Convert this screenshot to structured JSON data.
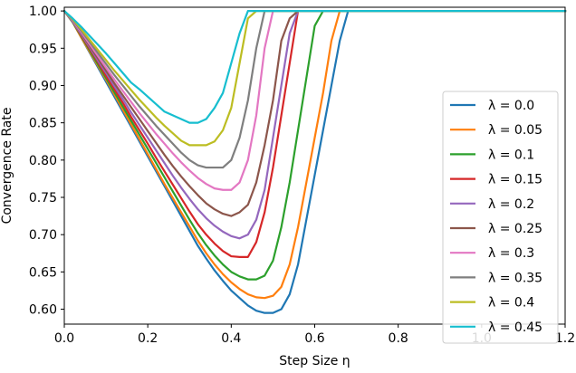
{
  "chart_data": {
    "type": "line",
    "xlabel": "Step Size η",
    "ylabel": "Convergence Rate",
    "xlim": [
      0.0,
      1.2
    ],
    "ylim": [
      0.58,
      1.005
    ],
    "xticks": [
      "0.0",
      "0.2",
      "0.4",
      "0.6",
      "0.8",
      "1.0",
      "1.2"
    ],
    "yticks": [
      "0.60",
      "0.65",
      "0.70",
      "0.75",
      "0.80",
      "0.85",
      "0.90",
      "0.95",
      "1.00"
    ],
    "grid": false,
    "legend_position": "center-right",
    "series": [
      {
        "name": "λ = 0.0",
        "color": "#1f77b4",
        "x": [
          0.0,
          0.02,
          0.04,
          0.06,
          0.08,
          0.1,
          0.12,
          0.14,
          0.16,
          0.18,
          0.2,
          0.22,
          0.24,
          0.26,
          0.28,
          0.3,
          0.32,
          0.34,
          0.36,
          0.38,
          0.4,
          0.42,
          0.44,
          0.46,
          0.48,
          0.5,
          0.52,
          0.54,
          0.56,
          0.58,
          0.6,
          0.62,
          0.64,
          0.66,
          0.68,
          1.2
        ],
        "y": [
          1.0,
          0.985,
          0.965,
          0.945,
          0.925,
          0.905,
          0.885,
          0.865,
          0.845,
          0.825,
          0.805,
          0.785,
          0.765,
          0.745,
          0.725,
          0.705,
          0.685,
          0.668,
          0.652,
          0.638,
          0.625,
          0.615,
          0.605,
          0.598,
          0.595,
          0.595,
          0.6,
          0.62,
          0.66,
          0.72,
          0.78,
          0.84,
          0.9,
          0.96,
          1.0,
          1.0
        ]
      },
      {
        "name": "λ = 0.05",
        "color": "#ff7f0e",
        "x": [
          0.0,
          0.02,
          0.04,
          0.06,
          0.08,
          0.1,
          0.12,
          0.14,
          0.16,
          0.18,
          0.2,
          0.22,
          0.24,
          0.26,
          0.28,
          0.3,
          0.32,
          0.34,
          0.36,
          0.38,
          0.4,
          0.42,
          0.44,
          0.46,
          0.48,
          0.5,
          0.52,
          0.54,
          0.56,
          0.58,
          0.6,
          0.62,
          0.64,
          0.66,
          1.2
        ],
        "y": [
          1.0,
          0.985,
          0.965,
          0.946,
          0.927,
          0.908,
          0.888,
          0.868,
          0.848,
          0.828,
          0.808,
          0.788,
          0.768,
          0.749,
          0.73,
          0.711,
          0.692,
          0.675,
          0.66,
          0.647,
          0.636,
          0.627,
          0.62,
          0.616,
          0.615,
          0.618,
          0.63,
          0.66,
          0.71,
          0.77,
          0.83,
          0.89,
          0.96,
          1.0,
          1.0
        ]
      },
      {
        "name": "λ = 0.1",
        "color": "#2ca02c",
        "x": [
          0.0,
          0.02,
          0.04,
          0.06,
          0.08,
          0.1,
          0.12,
          0.14,
          0.16,
          0.18,
          0.2,
          0.22,
          0.24,
          0.26,
          0.28,
          0.3,
          0.32,
          0.34,
          0.36,
          0.38,
          0.4,
          0.42,
          0.44,
          0.46,
          0.48,
          0.5,
          0.52,
          0.54,
          0.56,
          0.58,
          0.6,
          0.62,
          1.2
        ],
        "y": [
          1.0,
          0.985,
          0.967,
          0.948,
          0.929,
          0.91,
          0.891,
          0.872,
          0.853,
          0.834,
          0.815,
          0.796,
          0.777,
          0.758,
          0.739,
          0.72,
          0.702,
          0.686,
          0.672,
          0.66,
          0.65,
          0.644,
          0.64,
          0.64,
          0.645,
          0.665,
          0.71,
          0.77,
          0.84,
          0.91,
          0.98,
          1.0,
          1.0
        ]
      },
      {
        "name": "λ = 0.15",
        "color": "#d62728",
        "x": [
          0.0,
          0.02,
          0.04,
          0.06,
          0.08,
          0.1,
          0.12,
          0.14,
          0.16,
          0.18,
          0.2,
          0.22,
          0.24,
          0.26,
          0.28,
          0.3,
          0.32,
          0.34,
          0.36,
          0.38,
          0.4,
          0.42,
          0.44,
          0.46,
          0.48,
          0.5,
          0.52,
          0.54,
          0.56,
          0.58,
          0.6,
          1.2
        ],
        "y": [
          1.0,
          0.986,
          0.968,
          0.95,
          0.932,
          0.913,
          0.895,
          0.877,
          0.858,
          0.84,
          0.822,
          0.803,
          0.785,
          0.767,
          0.749,
          0.731,
          0.714,
          0.7,
          0.688,
          0.678,
          0.671,
          0.67,
          0.67,
          0.69,
          0.73,
          0.79,
          0.86,
          0.93,
          1.0,
          1.0,
          1.0,
          1.0
        ]
      },
      {
        "name": "λ = 0.2",
        "color": "#9467bd",
        "x": [
          0.0,
          0.02,
          0.04,
          0.06,
          0.08,
          0.1,
          0.12,
          0.14,
          0.16,
          0.18,
          0.2,
          0.22,
          0.24,
          0.26,
          0.28,
          0.3,
          0.32,
          0.34,
          0.36,
          0.38,
          0.4,
          0.42,
          0.44,
          0.46,
          0.48,
          0.5,
          0.52,
          0.54,
          0.56,
          1.2
        ],
        "y": [
          1.0,
          0.986,
          0.969,
          0.952,
          0.934,
          0.917,
          0.899,
          0.882,
          0.864,
          0.847,
          0.83,
          0.813,
          0.796,
          0.779,
          0.763,
          0.748,
          0.734,
          0.722,
          0.712,
          0.704,
          0.698,
          0.695,
          0.7,
          0.72,
          0.76,
          0.83,
          0.9,
          0.97,
          1.0,
          1.0
        ]
      },
      {
        "name": "λ = 0.25",
        "color": "#8c564b",
        "x": [
          0.0,
          0.02,
          0.04,
          0.06,
          0.08,
          0.1,
          0.12,
          0.14,
          0.16,
          0.18,
          0.2,
          0.22,
          0.24,
          0.26,
          0.28,
          0.3,
          0.32,
          0.34,
          0.36,
          0.38,
          0.4,
          0.42,
          0.44,
          0.46,
          0.48,
          0.5,
          0.52,
          0.54,
          0.56,
          1.2
        ],
        "y": [
          1.0,
          0.987,
          0.971,
          0.954,
          0.937,
          0.92,
          0.903,
          0.887,
          0.871,
          0.855,
          0.839,
          0.823,
          0.807,
          0.792,
          0.778,
          0.765,
          0.753,
          0.742,
          0.734,
          0.728,
          0.725,
          0.73,
          0.74,
          0.77,
          0.82,
          0.88,
          0.96,
          0.99,
          1.0,
          1.0
        ]
      },
      {
        "name": "λ = 0.3",
        "color": "#e377c2",
        "x": [
          0.0,
          0.02,
          0.04,
          0.06,
          0.08,
          0.1,
          0.12,
          0.14,
          0.16,
          0.18,
          0.2,
          0.22,
          0.24,
          0.26,
          0.28,
          0.3,
          0.32,
          0.34,
          0.36,
          0.38,
          0.4,
          0.42,
          0.44,
          0.46,
          0.48,
          0.5,
          1.2
        ],
        "y": [
          1.0,
          0.987,
          0.972,
          0.956,
          0.94,
          0.924,
          0.908,
          0.893,
          0.878,
          0.863,
          0.849,
          0.835,
          0.822,
          0.809,
          0.797,
          0.786,
          0.776,
          0.768,
          0.762,
          0.76,
          0.76,
          0.77,
          0.8,
          0.86,
          0.95,
          1.0,
          1.0
        ]
      },
      {
        "name": "λ = 0.35",
        "color": "#7f7f7f",
        "x": [
          0.0,
          0.02,
          0.04,
          0.06,
          0.08,
          0.1,
          0.12,
          0.14,
          0.16,
          0.18,
          0.2,
          0.22,
          0.24,
          0.26,
          0.28,
          0.3,
          0.32,
          0.34,
          0.36,
          0.38,
          0.4,
          0.42,
          0.44,
          0.46,
          0.48,
          1.2
        ],
        "y": [
          1.0,
          0.988,
          0.974,
          0.959,
          0.944,
          0.929,
          0.914,
          0.9,
          0.886,
          0.872,
          0.859,
          0.846,
          0.834,
          0.822,
          0.81,
          0.8,
          0.793,
          0.79,
          0.79,
          0.79,
          0.8,
          0.83,
          0.88,
          0.95,
          1.0,
          1.0
        ]
      },
      {
        "name": "λ = 0.4",
        "color": "#bcbd22",
        "x": [
          0.0,
          0.02,
          0.04,
          0.06,
          0.08,
          0.1,
          0.12,
          0.14,
          0.16,
          0.18,
          0.2,
          0.22,
          0.24,
          0.26,
          0.28,
          0.3,
          0.32,
          0.34,
          0.36,
          0.38,
          0.4,
          0.42,
          0.44,
          0.46,
          1.2
        ],
        "y": [
          1.0,
          0.989,
          0.976,
          0.962,
          0.948,
          0.934,
          0.92,
          0.907,
          0.894,
          0.881,
          0.869,
          0.857,
          0.846,
          0.836,
          0.826,
          0.82,
          0.82,
          0.82,
          0.825,
          0.84,
          0.87,
          0.93,
          0.99,
          1.0,
          1.0
        ]
      },
      {
        "name": "λ = 0.45",
        "color": "#17becf",
        "x": [
          0.0,
          0.02,
          0.04,
          0.06,
          0.08,
          0.1,
          0.12,
          0.14,
          0.16,
          0.18,
          0.2,
          0.22,
          0.24,
          0.26,
          0.28,
          0.3,
          0.32,
          0.34,
          0.36,
          0.38,
          0.4,
          0.42,
          0.44,
          1.2
        ],
        "y": [
          1.0,
          0.99,
          0.979,
          0.967,
          0.955,
          0.943,
          0.93,
          0.917,
          0.904,
          0.895,
          0.885,
          0.875,
          0.865,
          0.86,
          0.855,
          0.85,
          0.85,
          0.855,
          0.87,
          0.89,
          0.93,
          0.97,
          1.0,
          1.0
        ]
      }
    ]
  }
}
